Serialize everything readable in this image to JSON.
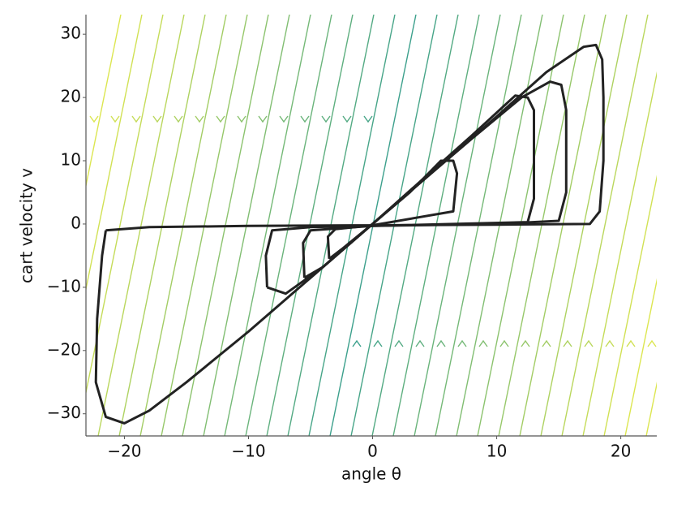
{
  "chart_data": {
    "type": "line",
    "xlabel": "angle θ",
    "ylabel": "cart velocity v",
    "xlim": [
      -23.1,
      22.9
    ],
    "ylim": [
      -33.5,
      33.1
    ],
    "xticks": [
      {
        "value": -20,
        "label": "−20"
      },
      {
        "value": -10,
        "label": "−10"
      },
      0,
      10,
      20
    ],
    "yticks": [
      {
        "value": -30,
        "label": "−30"
      },
      {
        "value": -20,
        "label": "−20"
      },
      {
        "value": -10,
        "label": "−10"
      },
      0,
      10,
      20,
      30
    ],
    "series": [
      {
        "color": "#222222",
        "x": [
          -21.5,
          -18,
          -10,
          0,
          10,
          17.5,
          18.3,
          18.6,
          18.6,
          18.5,
          18,
          17,
          14,
          10,
          5,
          0,
          -5,
          -10,
          -15,
          -18,
          -20,
          -21.5,
          -22.3,
          -22.2,
          -21.8,
          -21.5
        ],
        "y": [
          -1,
          -0.5,
          -0.3,
          -0.2,
          -0.1,
          0,
          2,
          10,
          20,
          26,
          28.3,
          28,
          24,
          17,
          8.5,
          0,
          -8.5,
          -17,
          -25,
          -29.5,
          -31.5,
          -30.5,
          -25,
          -15,
          -5,
          -1
        ]
      },
      {
        "color": "#222222",
        "x": [
          -8.5,
          -8.6,
          -8.1,
          -5,
          0,
          10,
          15,
          15.6,
          15.6,
          15.2,
          14.3,
          12,
          8,
          4,
          0,
          -4,
          -7,
          -8.5
        ],
        "y": [
          -10,
          -5,
          -1,
          -0.5,
          -0.3,
          0,
          0.5,
          5,
          18,
          22,
          22.5,
          20,
          13.5,
          6.8,
          0,
          -6.8,
          -11,
          -10
        ]
      },
      {
        "color": "#222222",
        "x": [
          -5.5,
          -5.6,
          -5,
          0,
          12.5,
          13,
          13,
          12.5,
          11.5,
          8,
          4,
          0,
          -4,
          -5.5
        ],
        "y": [
          -8.5,
          -3,
          -1,
          -0.3,
          0.3,
          4,
          18,
          20,
          20.3,
          14,
          7,
          0,
          -6.8,
          -8.5
        ]
      },
      {
        "color": "#222222",
        "x": [
          -3.5,
          -3.6,
          -3,
          0,
          6.5,
          6.8,
          6.5,
          5.5,
          3,
          0,
          -2.5,
          -3.5
        ],
        "y": [
          -5.5,
          -2,
          -0.8,
          -0.2,
          2,
          8,
          10,
          10,
          5,
          0,
          -4,
          -5.5
        ]
      }
    ]
  }
}
